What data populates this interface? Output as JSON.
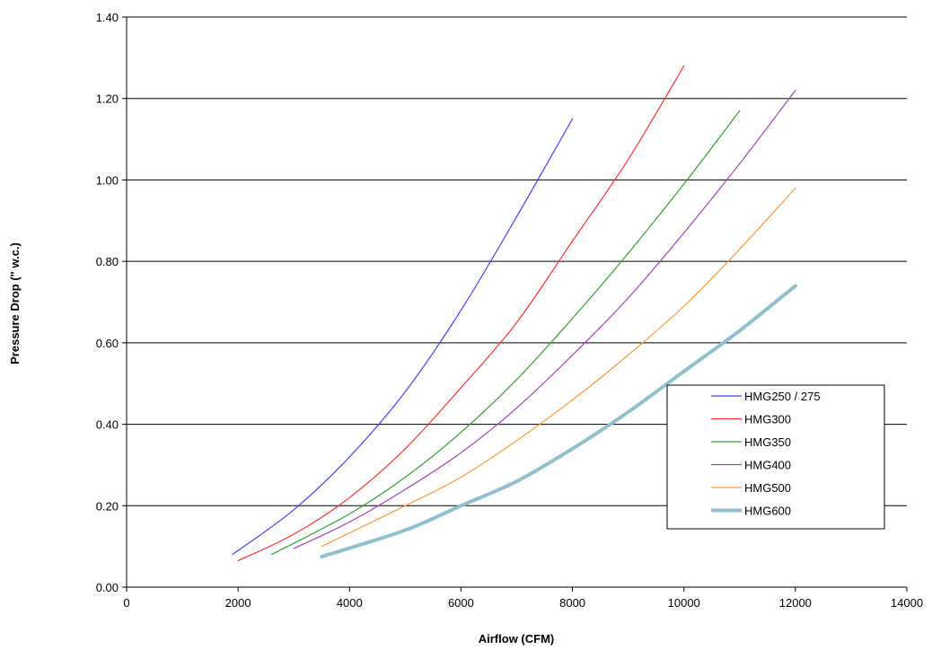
{
  "chart_data": {
    "type": "line",
    "title": "",
    "xlabel": "Airflow (CFM)",
    "ylabel": "Pressure Drop (\" w.c.)",
    "xlim": [
      0,
      14000
    ],
    "ylim": [
      0,
      1.4
    ],
    "x_ticks": [
      "0",
      "2000",
      "4000",
      "6000",
      "8000",
      "10000",
      "12000",
      "14000"
    ],
    "y_ticks": [
      "0.00",
      "0.20",
      "0.40",
      "0.60",
      "0.80",
      "1.00",
      "1.20",
      "1.40"
    ],
    "grid": "horizontal",
    "legend_position": "bottom-right",
    "series": [
      {
        "name": "HMG250 / 275",
        "color": "#4040ff",
        "width": "thin",
        "points": [
          [
            1900,
            0.08
          ],
          [
            3000,
            0.19
          ],
          [
            4000,
            0.32
          ],
          [
            5000,
            0.48
          ],
          [
            6000,
            0.68
          ],
          [
            7000,
            0.91
          ],
          [
            8000,
            1.15
          ]
        ]
      },
      {
        "name": "HMG300",
        "color": "#ff3030",
        "width": "thin",
        "points": [
          [
            2000,
            0.065
          ],
          [
            3000,
            0.13
          ],
          [
            4000,
            0.22
          ],
          [
            5000,
            0.34
          ],
          [
            6000,
            0.49
          ],
          [
            7000,
            0.65
          ],
          [
            8000,
            0.85
          ],
          [
            9000,
            1.05
          ],
          [
            10000,
            1.28
          ]
        ]
      },
      {
        "name": "HMG350",
        "color": "#30a030",
        "width": "thin",
        "points": [
          [
            2600,
            0.08
          ],
          [
            4000,
            0.18
          ],
          [
            5000,
            0.27
          ],
          [
            6000,
            0.38
          ],
          [
            7000,
            0.51
          ],
          [
            8000,
            0.66
          ],
          [
            9000,
            0.82
          ],
          [
            10000,
            0.99
          ],
          [
            11000,
            1.17
          ]
        ]
      },
      {
        "name": "HMG400",
        "color": "#a040c0",
        "width": "thin",
        "points": [
          [
            3000,
            0.095
          ],
          [
            4000,
            0.16
          ],
          [
            5000,
            0.24
          ],
          [
            6000,
            0.33
          ],
          [
            7000,
            0.44
          ],
          [
            8000,
            0.57
          ],
          [
            9000,
            0.71
          ],
          [
            10000,
            0.87
          ],
          [
            11000,
            1.04
          ],
          [
            12000,
            1.22
          ]
        ]
      },
      {
        "name": "HMG500",
        "color": "#ff9933",
        "width": "thin",
        "points": [
          [
            3500,
            0.1
          ],
          [
            5000,
            0.2
          ],
          [
            6000,
            0.27
          ],
          [
            7000,
            0.36
          ],
          [
            8000,
            0.46
          ],
          [
            9000,
            0.57
          ],
          [
            10000,
            0.69
          ],
          [
            11000,
            0.83
          ],
          [
            12000,
            0.98
          ]
        ]
      },
      {
        "name": "HMG600",
        "color": "#8fc0d0",
        "width": "thick",
        "points": [
          [
            3500,
            0.075
          ],
          [
            5000,
            0.14
          ],
          [
            6000,
            0.2
          ],
          [
            7000,
            0.26
          ],
          [
            8000,
            0.34
          ],
          [
            9000,
            0.43
          ],
          [
            10000,
            0.53
          ],
          [
            11000,
            0.63
          ],
          [
            12000,
            0.74
          ]
        ]
      }
    ]
  }
}
